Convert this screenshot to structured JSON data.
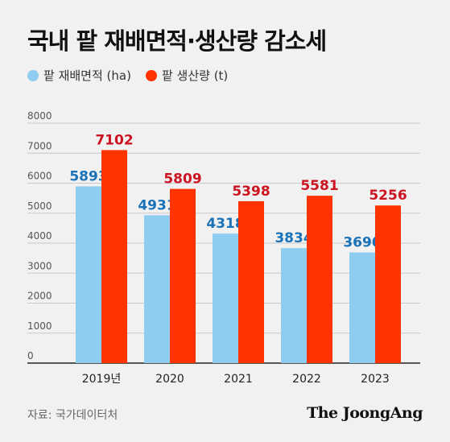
{
  "title": "국내 팥 재배면적·생산량 감소세",
  "legend": [
    {
      "label": "팥 재배면적 (ha)",
      "color": "#8fcdf0"
    },
    {
      "label": "팥 생산량 (t)",
      "color": "#ff3300"
    }
  ],
  "source": "자료: 국가데이터처",
  "brand": "The JoongAng",
  "chart_data": {
    "type": "bar",
    "title": "국내 팥 재배면적·생산량 감소세",
    "categories": [
      "2019년",
      "2020",
      "2021",
      "2022",
      "2023"
    ],
    "series": [
      {
        "name": "팥 재배면적 (ha)",
        "values": [
          5893,
          4931,
          4318,
          3834,
          3690
        ],
        "color": "#8fcdf0",
        "label_color": "#1a73b8"
      },
      {
        "name": "팥 생산량 (t)",
        "values": [
          7102,
          5809,
          5398,
          5581,
          5256
        ],
        "color": "#ff3300",
        "label_color": "#cc1422"
      }
    ],
    "ylim": [
      0,
      8000
    ],
    "yticks": [
      0,
      1000,
      2000,
      3000,
      4000,
      5000,
      6000,
      7000,
      8000
    ],
    "grid": true,
    "legend_position": "top-left"
  }
}
